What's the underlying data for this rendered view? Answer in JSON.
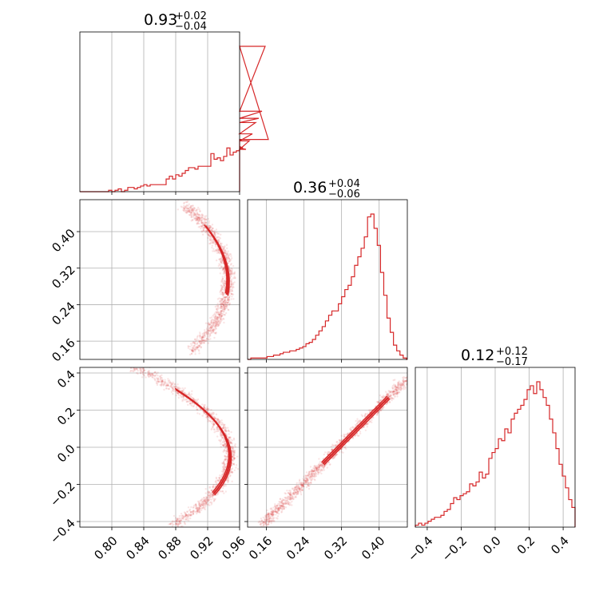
{
  "colors": {
    "series": "#d62728",
    "grid": "#b0b0b0",
    "frame": "#000000"
  },
  "chart_data": [
    {
      "type": "histogram",
      "panel": "p00",
      "title": {
        "value": "0.93",
        "upper": "+0.02",
        "lower": "−0.04"
      },
      "xlim": [
        0.76,
        0.96
      ],
      "ticks": [
        0.8,
        0.84,
        0.88,
        0.92,
        0.96
      ],
      "grid": true,
      "bin_edges_start": 0.76,
      "bin_width": 0.004,
      "counts": [
        0,
        0,
        0,
        0,
        0,
        0,
        0,
        0,
        0,
        1,
        0,
        1,
        2,
        0,
        1,
        3,
        3,
        2,
        3,
        4,
        5,
        4,
        5,
        5,
        5,
        5,
        5,
        9,
        11,
        9,
        12,
        11,
        13,
        15,
        17,
        17,
        16,
        18,
        18,
        18,
        18,
        27,
        23,
        24,
        22,
        25,
        31,
        26,
        28,
        29,
        32,
        31,
        30,
        36,
        41,
        49,
        52,
        57,
        103,
        37
      ]
    },
    {
      "type": "histogram",
      "panel": "p11",
      "title": {
        "value": "0.36",
        "upper": "+0.04",
        "lower": "−0.06"
      },
      "xlim": [
        0.12,
        0.46
      ],
      "ticks": [
        0.16,
        0.24,
        0.32,
        0.4
      ],
      "grid": true,
      "bin_edges_start": 0.12,
      "bin_width": 0.0069,
      "counts": [
        0,
        1,
        1,
        1,
        1,
        1,
        2,
        2,
        3,
        3,
        4,
        5,
        5,
        6,
        6,
        7,
        8,
        9,
        11,
        12,
        14,
        17,
        20,
        23,
        27,
        31,
        34,
        34,
        39,
        44,
        49,
        52,
        58,
        66,
        72,
        78,
        86,
        100,
        102,
        92,
        80,
        61,
        45,
        29,
        19,
        10,
        6,
        3,
        1,
        0
      ]
    },
    {
      "type": "histogram",
      "panel": "p22",
      "title": {
        "value": "0.12",
        "upper": "+0.12",
        "lower": "−0.17"
      },
      "xlim": [
        -0.47,
        0.47
      ],
      "ticks": [
        -0.4,
        -0.2,
        0.0,
        0.2,
        0.4
      ],
      "grid": true,
      "bin_edges_start": -0.47,
      "bin_width": 0.0188,
      "counts": [
        1,
        2,
        1,
        2,
        3,
        4,
        5,
        5,
        6,
        8,
        9,
        12,
        15,
        14,
        16,
        17,
        18,
        22,
        21,
        23,
        28,
        25,
        27,
        35,
        38,
        40,
        45,
        44,
        50,
        48,
        55,
        58,
        60,
        62,
        65,
        70,
        72,
        68,
        74,
        70,
        66,
        62,
        55,
        48,
        40,
        32,
        26,
        20,
        14,
        10
      ]
    },
    {
      "type": "scatter-density",
      "panel": "p10",
      "xlim": [
        0.76,
        0.96
      ],
      "ylim": [
        0.12,
        0.47
      ],
      "xticks": [
        0.8,
        0.84,
        0.88,
        0.92,
        0.96
      ],
      "yticks": [
        0.16,
        0.24,
        0.32,
        0.4
      ],
      "curve": "x = 0.9455 - 0.38 * (y - 0.292)^2",
      "grid": true
    },
    {
      "type": "scatter-density",
      "panel": "p20",
      "xlim": [
        0.76,
        0.96
      ],
      "ylim": [
        -0.43,
        0.43
      ],
      "xticks": [
        0.8,
        0.84,
        0.88,
        0.92,
        0.96
      ],
      "yticks": [
        -0.4,
        -0.2,
        0.0,
        0.2,
        0.4
      ],
      "curve": "x = 0.948 - 0.52 * (y + 0.05)^2 (approx.)",
      "grid": true
    },
    {
      "type": "scatter-density",
      "panel": "p21",
      "xlim": [
        0.12,
        0.46
      ],
      "ylim": [
        -0.43,
        0.43
      ],
      "xticks": [
        0.16,
        0.24,
        0.32,
        0.4
      ],
      "yticks": [
        -0.4,
        -0.2,
        0.0,
        0.2,
        0.4
      ],
      "curve": "near-linear, y increasing with x",
      "grid": true
    }
  ]
}
